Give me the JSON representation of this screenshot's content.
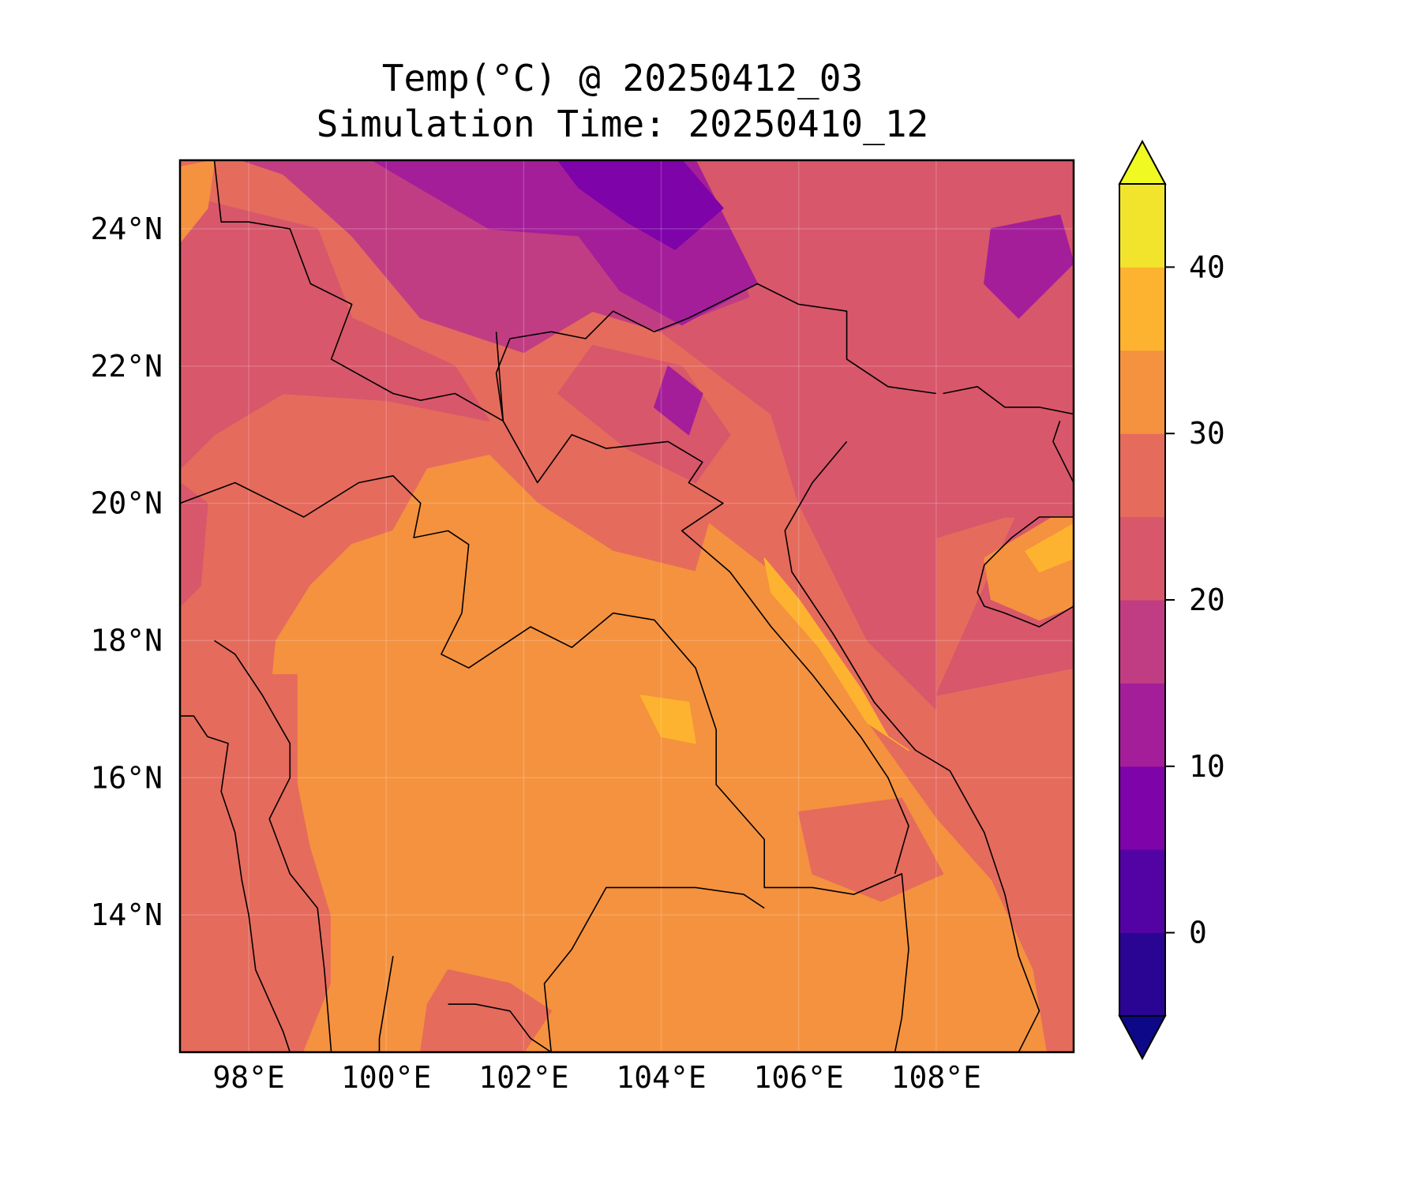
{
  "title": {
    "line1": "Temp(°C) @ 20250412_03",
    "line2": "Simulation Time: 20250410_12"
  },
  "map": {
    "lon_range": [
      97.0,
      110.0
    ],
    "lat_range": [
      12.0,
      25.0
    ],
    "lon_ticks": [
      {
        "value": 98,
        "label": "98°E"
      },
      {
        "value": 100,
        "label": "100°E"
      },
      {
        "value": 102,
        "label": "102°E"
      },
      {
        "value": 104,
        "label": "104°E"
      },
      {
        "value": 106,
        "label": "106°E"
      },
      {
        "value": 108,
        "label": "108°E"
      }
    ],
    "lat_ticks": [
      {
        "value": 24,
        "label": "24°N"
      },
      {
        "value": 22,
        "label": "22°N"
      },
      {
        "value": 20,
        "label": "20°N"
      },
      {
        "value": 18,
        "label": "18°N"
      },
      {
        "value": 16,
        "label": "16°N"
      },
      {
        "value": 14,
        "label": "14°N"
      }
    ],
    "gridlines": true,
    "coastlines": true,
    "borders": true,
    "background_level_color": "#e56b5d"
  },
  "colorbar": {
    "placement": "right",
    "extend": "both",
    "range": [
      -5,
      45
    ],
    "levels": [
      -5,
      0,
      5,
      10,
      15,
      20,
      25,
      30,
      35,
      40,
      45
    ],
    "bin_colors": [
      "#2a0593",
      "#5302a3",
      "#7e03a8",
      "#a41e9a",
      "#c13d83",
      "#d8576b",
      "#e56b5d",
      "#f4923f",
      "#fdb32f",
      "#f2e42c"
    ],
    "under_color": "#0d0887",
    "over_color": "#f0f921",
    "ticks": [
      {
        "value": 0,
        "label": "0"
      },
      {
        "value": 10,
        "label": "10"
      },
      {
        "value": 20,
        "label": "20"
      },
      {
        "value": 30,
        "label": "30"
      },
      {
        "value": 40,
        "label": "40"
      }
    ]
  },
  "chart_data": {
    "type": "heatmap",
    "variable": "Temp(°C)",
    "x_units": "degrees_east",
    "y_units": "degrees_north",
    "regions": [
      {
        "level": "25-30",
        "color": "#e56b5d",
        "polygon": [
          [
            97.0,
            25.0
          ],
          [
            110.0,
            25.0
          ],
          [
            110.0,
            12.0
          ],
          [
            97.0,
            12.0
          ]
        ]
      },
      {
        "level": "15-20",
        "color": "#c13d83",
        "polygon": [
          [
            97.9,
            25.0
          ],
          [
            104.5,
            25.0
          ],
          [
            105.3,
            23.0
          ],
          [
            104.0,
            22.5
          ],
          [
            103.0,
            22.8
          ],
          [
            102.0,
            22.2
          ],
          [
            100.5,
            22.7
          ],
          [
            99.5,
            23.9
          ],
          [
            98.5,
            24.8
          ]
        ]
      },
      {
        "level": "20-25",
        "color": "#d8576b",
        "polygon": [
          [
            104.5,
            25.0
          ],
          [
            110.0,
            25.0
          ],
          [
            110.0,
            19.8
          ],
          [
            109.0,
            19.8
          ],
          [
            108.0,
            19.5
          ],
          [
            108.0,
            17.0
          ],
          [
            107.0,
            18.0
          ],
          [
            106.0,
            20.0
          ],
          [
            105.6,
            21.3
          ],
          [
            104.0,
            22.5
          ],
          [
            105.3,
            23.0
          ]
        ]
      },
      {
        "level": "20-25",
        "color": "#d8576b",
        "polygon": [
          [
            97.0,
            24.5
          ],
          [
            99.0,
            24.0
          ],
          [
            99.5,
            22.7
          ],
          [
            101.0,
            22.0
          ],
          [
            101.5,
            21.2
          ],
          [
            100.0,
            21.5
          ],
          [
            98.5,
            21.6
          ],
          [
            97.5,
            21.0
          ],
          [
            97.0,
            20.5
          ]
        ]
      },
      {
        "level": "20-25",
        "color": "#d8576b",
        "polygon": [
          [
            103.0,
            22.3
          ],
          [
            104.3,
            22.0
          ],
          [
            105.0,
            21.0
          ],
          [
            104.5,
            20.3
          ],
          [
            103.5,
            20.8
          ],
          [
            102.5,
            21.6
          ]
        ]
      },
      {
        "level": "20-25",
        "color": "#d8576b",
        "polygon": [
          [
            97.0,
            20.3
          ],
          [
            97.4,
            20.0
          ],
          [
            97.3,
            18.8
          ],
          [
            97.0,
            18.5
          ]
        ]
      },
      {
        "level": "10-15",
        "color": "#a41e9a",
        "polygon": [
          [
            99.8,
            25.0
          ],
          [
            104.5,
            25.0
          ],
          [
            105.4,
            23.2
          ],
          [
            104.3,
            22.6
          ],
          [
            103.4,
            23.1
          ],
          [
            102.8,
            23.9
          ],
          [
            101.5,
            24.0
          ]
        ]
      },
      {
        "level": "10-15",
        "color": "#a41e9a",
        "polygon": [
          [
            108.8,
            24.0
          ],
          [
            109.8,
            24.2
          ],
          [
            110.0,
            23.5
          ],
          [
            109.2,
            22.7
          ],
          [
            108.7,
            23.2
          ]
        ]
      },
      {
        "level": "10-15",
        "color": "#a41e9a",
        "polygon": [
          [
            104.1,
            22.0
          ],
          [
            104.6,
            21.6
          ],
          [
            104.4,
            21.0
          ],
          [
            103.9,
            21.4
          ]
        ]
      },
      {
        "level": "5-10",
        "color": "#7e03a8",
        "polygon": [
          [
            102.5,
            25.0
          ],
          [
            104.3,
            25.0
          ],
          [
            104.9,
            24.3
          ],
          [
            104.2,
            23.7
          ],
          [
            103.5,
            24.1
          ],
          [
            102.8,
            24.6
          ]
        ]
      },
      {
        "level": "30-35",
        "color": "#f4923f",
        "polygon": [
          [
            97.0,
            24.9
          ],
          [
            97.5,
            25.0
          ],
          [
            97.4,
            24.3
          ],
          [
            97.0,
            23.8
          ]
        ]
      },
      {
        "level": "30-35",
        "color": "#f4923f",
        "polygon": [
          [
            98.8,
            12.0
          ],
          [
            109.6,
            12.0
          ],
          [
            109.4,
            13.2
          ],
          [
            108.8,
            14.5
          ],
          [
            108.0,
            15.4
          ],
          [
            107.0,
            16.8
          ],
          [
            106.2,
            18.2
          ],
          [
            105.6,
            19.0
          ],
          [
            104.7,
            19.7
          ],
          [
            104.5,
            19.0
          ],
          [
            103.3,
            19.3
          ],
          [
            102.2,
            20.0
          ],
          [
            101.5,
            20.7
          ],
          [
            100.6,
            20.5
          ],
          [
            100.1,
            19.6
          ],
          [
            99.5,
            19.4
          ],
          [
            98.9,
            18.8
          ],
          [
            98.4,
            18.0
          ],
          [
            98.3,
            17.0
          ],
          [
            98.7,
            16.0
          ],
          [
            98.9,
            15.0
          ],
          [
            99.2,
            14.0
          ],
          [
            99.2,
            13.0
          ]
        ]
      },
      {
        "level": "25-30",
        "color": "#e56b5d",
        "polygon": [
          [
            100.5,
            12.0
          ],
          [
            102.0,
            12.0
          ],
          [
            102.4,
            12.6
          ],
          [
            101.8,
            13.0
          ],
          [
            100.9,
            13.2
          ],
          [
            100.6,
            12.7
          ]
        ]
      },
      {
        "level": "25-30",
        "color": "#e56b5d",
        "polygon": [
          [
            106.0,
            15.5
          ],
          [
            107.5,
            15.7
          ],
          [
            108.1,
            14.6
          ],
          [
            107.2,
            14.2
          ],
          [
            106.2,
            14.6
          ]
        ]
      },
      {
        "level": "25-30",
        "color": "#e56b5d",
        "polygon": [
          [
            98.2,
            17.5
          ],
          [
            98.7,
            17.5
          ],
          [
            98.7,
            15.3
          ],
          [
            98.3,
            14.0
          ],
          [
            98.0,
            14.5
          ],
          [
            97.9,
            16.5
          ]
        ]
      },
      {
        "level": "20-25",
        "color": "#d8576b",
        "polygon": [
          [
            108.0,
            17.2
          ],
          [
            110.0,
            17.6
          ],
          [
            110.0,
            19.9
          ],
          [
            109.2,
            19.9
          ],
          [
            108.8,
            19.0
          ]
        ]
      },
      {
        "level": "30-35",
        "color": "#f4923f",
        "polygon": [
          [
            108.7,
            19.2
          ],
          [
            109.7,
            19.8
          ],
          [
            110.0,
            19.8
          ],
          [
            110.0,
            18.5
          ],
          [
            109.5,
            18.3
          ],
          [
            108.8,
            18.6
          ]
        ]
      },
      {
        "level": "35-40",
        "color": "#fdb32f",
        "polygon": [
          [
            105.5,
            19.2
          ],
          [
            106.0,
            18.6
          ],
          [
            106.9,
            17.3
          ],
          [
            107.3,
            16.6
          ],
          [
            107.6,
            16.4
          ],
          [
            107.0,
            16.8
          ],
          [
            106.3,
            17.9
          ],
          [
            105.6,
            18.7
          ]
        ]
      },
      {
        "level": "35-40",
        "color": "#fdb32f",
        "polygon": [
          [
            103.7,
            17.2
          ],
          [
            104.4,
            17.1
          ],
          [
            104.5,
            16.5
          ],
          [
            104.0,
            16.6
          ]
        ]
      },
      {
        "level": "35-40",
        "color": "#fdb32f",
        "polygon": [
          [
            109.3,
            19.3
          ],
          [
            110.0,
            19.7
          ],
          [
            110.0,
            19.2
          ],
          [
            109.5,
            19.0
          ]
        ]
      }
    ]
  }
}
